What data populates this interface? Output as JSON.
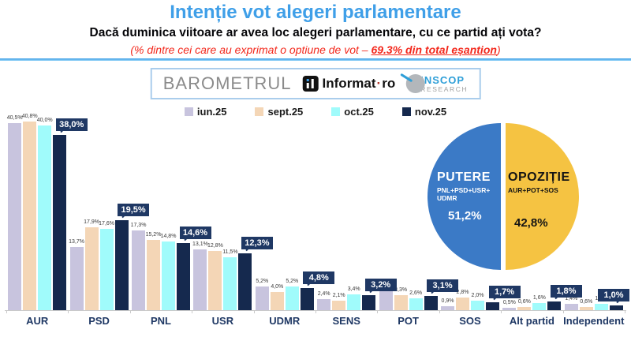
{
  "header": {
    "title": "Intenție vot alegeri parlamentare",
    "question": "Dacă duminica viitoare ar avea loc alegeri parlamentare, cu ce partid ați vota?",
    "note_prefix": "(% dintre cei care au exprimat o optiune de vot – ",
    "note_highlight": "69.3% din total eșantion",
    "note_suffix": ")"
  },
  "branding": {
    "barometrul": "BAROMETRUL",
    "informat_name": "Informat",
    "informat_dot": "·",
    "informat_tld": "ro",
    "inscop_name": "INSCOP",
    "inscop_sub": "RESEARCH"
  },
  "colors": {
    "title_blue": "#3f9fe8",
    "note_red": "#f3281c",
    "divider_blue": "#3e9ee6",
    "callout_navy": "#1f3864",
    "category_navy": "#1f3864",
    "axis_gray": "#c9c9c9",
    "pie_blue": "#3b7ac6",
    "pie_yellow": "#f5c342"
  },
  "chart_data": [
    {
      "type": "bar",
      "title": "Intenție vot alegeri parlamentare",
      "xlabel": "",
      "ylabel": "",
      "ylim": [
        0,
        43
      ],
      "grid": false,
      "legend_position": "top",
      "value_suffix": "%",
      "decimal_separator": ",",
      "categories": [
        "AUR",
        "PSD",
        "PNL",
        "USR",
        "UDMR",
        "SENS",
        "POT",
        "SOS",
        "Alt partid",
        "Independent"
      ],
      "series": [
        {
          "name": "iun.25",
          "color": "#c8c4de",
          "values": [
            40.5,
            13.7,
            17.3,
            13.1,
            5.2,
            2.4,
            4.2,
            0.9,
            0.5,
            1.4
          ]
        },
        {
          "name": "sept.25",
          "color": "#f4d6b6",
          "values": [
            40.8,
            17.9,
            15.2,
            12.8,
            4.0,
            2.1,
            3.3,
            2.8,
            0.6,
            0.6
          ]
        },
        {
          "name": "oct.25",
          "color": "#a0fbfb",
          "values": [
            40.0,
            17.6,
            14.8,
            11.5,
            5.2,
            3.4,
            2.6,
            2.0,
            1.6,
            1.3
          ]
        },
        {
          "name": "nov.25",
          "color": "#15294e",
          "values": [
            38.0,
            19.5,
            14.6,
            12.3,
            4.8,
            3.2,
            3.1,
            1.7,
            1.8,
            1.0
          ]
        }
      ]
    },
    {
      "type": "pie",
      "slices": [
        {
          "label": "PUTERE",
          "sublabel_line1": "PNL+PSD+USR+",
          "sublabel_line2": "UDMR",
          "value": 51.2,
          "display": "51,2%",
          "color": "#3b7ac6",
          "text_color": "#ffffff"
        },
        {
          "label": "OPOZIȚIE",
          "sublabel_line1": "AUR+POT+SOS",
          "sublabel_line2": "",
          "value": 42.8,
          "display": "42,8%",
          "color": "#f5c342",
          "text_color": "#141414"
        }
      ]
    }
  ]
}
